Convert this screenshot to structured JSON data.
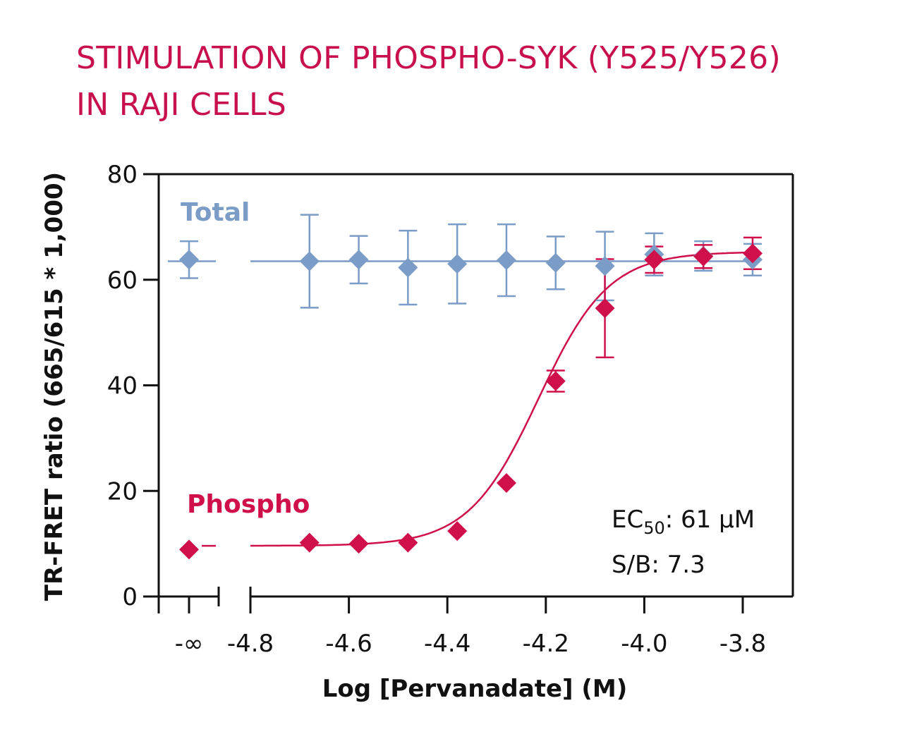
{
  "title": {
    "line1": "STIMULATION OF PHOSPHO-SYK (Y525/Y526)",
    "line2": "IN RAJI CELLS"
  },
  "colors": {
    "title": "#c8104c",
    "phospho": "#d0104a",
    "total": "#7a9cc6",
    "axis": "#111111"
  },
  "chart_data": {
    "type": "scatter",
    "xlabel": "Log [Pervanadate] (M)",
    "ylabel": "TR-FRET ratio (665/615 * 1,000)",
    "xlim": [
      -4.9,
      -3.75
    ],
    "ylim": [
      0,
      80
    ],
    "x_ticks": [
      "-4.8",
      "-4.6",
      "-4.4",
      "-4.2",
      "-4.0",
      "-3.8"
    ],
    "x_tick_values": [
      -4.8,
      -4.6,
      -4.4,
      -4.2,
      -4.0,
      -3.8
    ],
    "x_break_label": "-∞",
    "y_ticks": [
      "0",
      "20",
      "40",
      "60",
      "80"
    ],
    "y_tick_values": [
      0,
      20,
      40,
      60,
      80
    ],
    "grid": false,
    "series": [
      {
        "name": "Total",
        "color": "#7a9cc6",
        "zero_point": {
          "y": 63.8,
          "err": 3.5
        },
        "points": [
          {
            "x": -4.68,
            "y": 63.5,
            "err": 8.8
          },
          {
            "x": -4.58,
            "y": 63.8,
            "err": 4.5
          },
          {
            "x": -4.48,
            "y": 62.3,
            "err": 7.0
          },
          {
            "x": -4.38,
            "y": 63.0,
            "err": 7.5
          },
          {
            "x": -4.28,
            "y": 63.7,
            "err": 6.8
          },
          {
            "x": -4.18,
            "y": 63.2,
            "err": 5.0
          },
          {
            "x": -4.08,
            "y": 62.6,
            "err": 6.5
          },
          {
            "x": -3.98,
            "y": 64.8,
            "err": 4.0
          },
          {
            "x": -3.88,
            "y": 64.5,
            "err": 2.8
          },
          {
            "x": -3.78,
            "y": 63.8,
            "err": 3.0
          }
        ],
        "fit": "flat",
        "fit_value": 63.5
      },
      {
        "name": "Phospho",
        "color": "#d0104a",
        "zero_point": {
          "y": 8.9,
          "err": 0
        },
        "points": [
          {
            "x": -4.68,
            "y": 10.2,
            "err": 0
          },
          {
            "x": -4.58,
            "y": 10.0,
            "err": 0
          },
          {
            "x": -4.48,
            "y": 10.2,
            "err": 0
          },
          {
            "x": -4.38,
            "y": 12.4,
            "err": 0
          },
          {
            "x": -4.28,
            "y": 21.5,
            "err": 0
          },
          {
            "x": -4.18,
            "y": 40.8,
            "err": 2.0
          },
          {
            "x": -4.08,
            "y": 54.6,
            "err": 9.3
          },
          {
            "x": -3.98,
            "y": 63.8,
            "err": 2.5
          },
          {
            "x": -3.88,
            "y": 64.4,
            "err": 2.2
          },
          {
            "x": -3.78,
            "y": 65.0,
            "err": 3.0
          }
        ],
        "fit": "sigmoid",
        "fit_params": {
          "bottom": 9.6,
          "top": 65.3,
          "logEC50": -4.215,
          "hill": 6.1
        }
      }
    ],
    "annotations": {
      "ec50_prefix": "EC",
      "ec50_sub": "50",
      "ec50_value": ": 61 µM",
      "sb": "S/B: 7.3"
    }
  }
}
